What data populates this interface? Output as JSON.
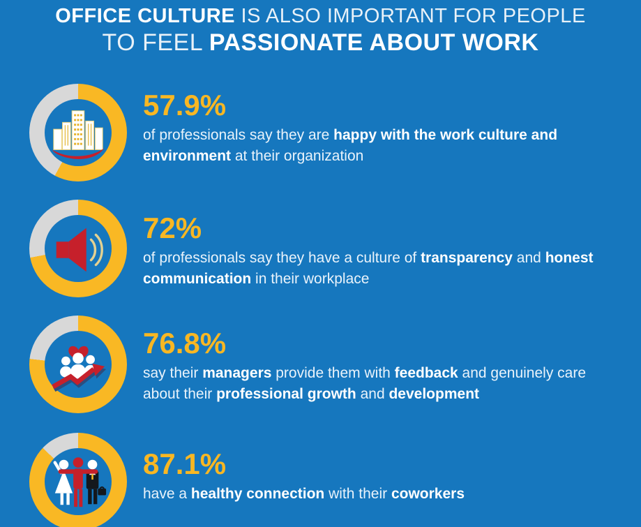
{
  "title": {
    "line1_segments": [
      {
        "text": "OFFICE CULTURE",
        "bold": true
      },
      {
        "text": " IS ALSO IMPORTANT FOR  PEOPLE",
        "bold": false
      }
    ],
    "line2_segments": [
      {
        "text": "TO FEEL ",
        "bold": false
      },
      {
        "text": "PASSIONATE ABOUT WORK",
        "bold": true
      }
    ]
  },
  "colors": {
    "background": "#1677be",
    "accent_yellow": "#f8b723",
    "ring_yellow": "#f9b824",
    "ring_gray": "#d8d8d8",
    "accent_red": "#c6202b",
    "arrow_navy": "#2b4e80",
    "suit_dark": "#14181d",
    "text_white": "#ffffff"
  },
  "rows": [
    {
      "icon": "buildings-icon",
      "percent_label": "57.9%",
      "percent_value": 57.9,
      "segments": [
        {
          "text": "of professionals say they are ",
          "bold": false
        },
        {
          "text": "happy with the work culture and environment",
          "bold": true
        },
        {
          "text": " at their organization",
          "bold": false
        }
      ]
    },
    {
      "icon": "megaphone-icon",
      "percent_label": "72%",
      "percent_value": 72,
      "segments": [
        {
          "text": "of professionals say they have a culture of ",
          "bold": false
        },
        {
          "text": "transparency",
          "bold": true
        },
        {
          "text": " and ",
          "bold": false
        },
        {
          "text": "honest communication",
          "bold": true
        },
        {
          "text": " in their workplace",
          "bold": false
        }
      ]
    },
    {
      "icon": "team-growth-icon",
      "percent_label": "76.8%",
      "percent_value": 76.8,
      "segments": [
        {
          "text": "say their ",
          "bold": false
        },
        {
          "text": "managers",
          "bold": true
        },
        {
          "text": " provide them with ",
          "bold": false
        },
        {
          "text": "feedback",
          "bold": true
        },
        {
          "text": " and genuinely care about their ",
          "bold": false
        },
        {
          "text": "professional growth",
          "bold": true
        },
        {
          "text": " and ",
          "bold": false
        },
        {
          "text": "development",
          "bold": true
        }
      ]
    },
    {
      "icon": "coworkers-icon",
      "percent_label": "87.1%",
      "percent_value": 87.1,
      "segments": [
        {
          "text": "have a ",
          "bold": false
        },
        {
          "text": "healthy connection",
          "bold": true
        },
        {
          "text": " with their ",
          "bold": false
        },
        {
          "text": "coworkers",
          "bold": true
        }
      ]
    }
  ],
  "chart_data": {
    "type": "pie",
    "title": "OFFICE CULTURE IS ALSO IMPORTANT FOR PEOPLE TO FEEL PASSIONATE ABOUT WORK",
    "unit": "%",
    "legend_position": "right-of-donut",
    "series": [
      {
        "name": "happy with the work culture and environment at their organization",
        "value": 57.9
      },
      {
        "name": "culture of transparency and honest communication in their workplace",
        "value": 72
      },
      {
        "name": "managers provide feedback and genuinely care about professional growth and development",
        "value": 76.8
      },
      {
        "name": "healthy connection with their coworkers",
        "value": 87.1
      }
    ],
    "notes": "Four separate two-slice donut rings; filled slice yellow starting at 12 o'clock clockwise, remainder gray."
  }
}
